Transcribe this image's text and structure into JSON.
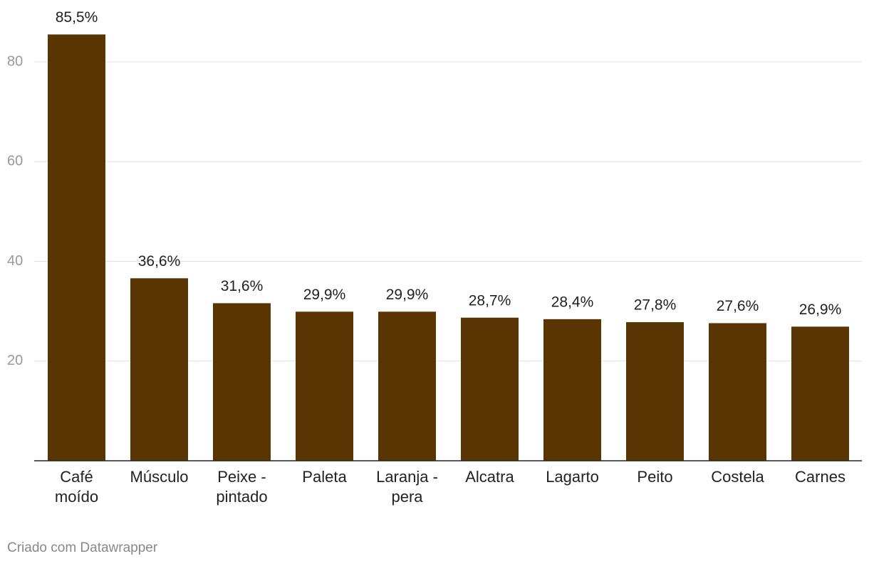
{
  "chart_data": {
    "type": "bar",
    "categories": [
      "Café moído",
      "Músculo",
      "Peixe - pintado",
      "Paleta",
      "Laranja - pera",
      "Alcatra",
      "Lagarto",
      "Peito",
      "Costela",
      "Carnes"
    ],
    "values": [
      85.5,
      36.6,
      31.6,
      29.9,
      29.9,
      28.7,
      28.4,
      27.8,
      27.6,
      26.9
    ],
    "value_labels": [
      "85,5%",
      "36,6%",
      "31,6%",
      "29,9%",
      "29,9%",
      "28,7%",
      "28,4%",
      "27,8%",
      "27,6%",
      "26,9%"
    ],
    "color": "#583502",
    "ylim": [
      0,
      90
    ],
    "yticks": [
      20,
      40,
      60,
      80
    ],
    "grid": true,
    "footer": "Criado com Datawrapper"
  }
}
